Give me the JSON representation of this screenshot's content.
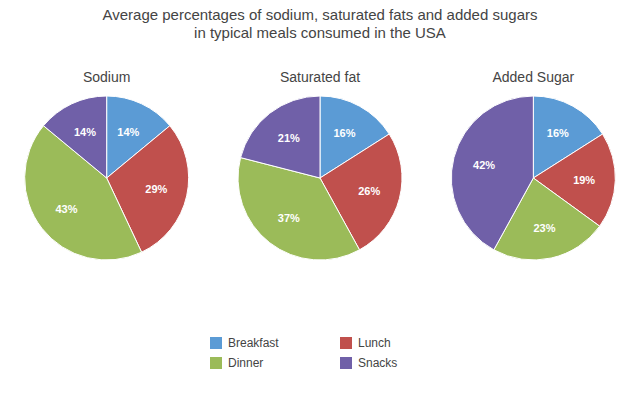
{
  "title": "Average percentages of sodium, saturated fats and added sugars\nin typical meals consumed in the USA",
  "legend": "bottom",
  "chart_data": [
    {
      "type": "pie",
      "title": "Sodium",
      "categories": [
        "Breakfast",
        "Lunch",
        "Dinner",
        "Snacks"
      ],
      "values": [
        14,
        29,
        43,
        14
      ],
      "value_labels": [
        "14%",
        "29%",
        "43%",
        "14%"
      ],
      "colors": [
        "#5b9bd5",
        "#c0504d",
        "#9bbb59",
        "#7060a8"
      ],
      "data_labels": true
    },
    {
      "type": "pie",
      "title": "Saturated fat",
      "categories": [
        "Breakfast",
        "Lunch",
        "Dinner",
        "Snacks"
      ],
      "values": [
        16,
        26,
        37,
        21
      ],
      "value_labels": [
        "16%",
        "26%",
        "37%",
        "21%"
      ],
      "colors": [
        "#5b9bd5",
        "#c0504d",
        "#9bbb59",
        "#7060a8"
      ],
      "data_labels": true
    },
    {
      "type": "pie",
      "title": "Added Sugar",
      "categories": [
        "Breakfast",
        "Lunch",
        "Dinner",
        "Snacks"
      ],
      "values": [
        16,
        19,
        23,
        42
      ],
      "value_labels": [
        "16%",
        "19%",
        "23%",
        "42%"
      ],
      "colors": [
        "#5b9bd5",
        "#c0504d",
        "#9bbb59",
        "#7060a8"
      ],
      "data_labels": true
    }
  ]
}
